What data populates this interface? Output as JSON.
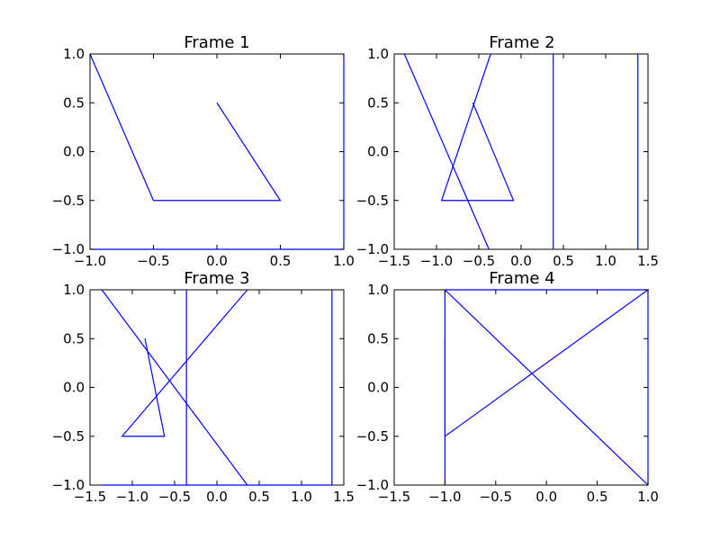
{
  "chart_data": [
    {
      "type": "line",
      "title": "Frame 1",
      "xlim": [
        -1.0,
        1.0
      ],
      "ylim": [
        -1.0,
        1.0
      ],
      "xticks": [
        "−1.0",
        "−0.5",
        "0.0",
        "0.5",
        "1.0"
      ],
      "yticks": [
        "−1.0",
        "−0.5",
        "0.0",
        "0.5",
        "1.0"
      ],
      "grid": false,
      "color": "#0000ff",
      "series": [
        {
          "x": [
            0.0,
            0.5,
            -0.5,
            -1.0
          ],
          "y": [
            0.5,
            -0.5,
            -0.5,
            1.0
          ]
        },
        {
          "x": [
            1.0,
            1.0
          ],
          "y": [
            1.0,
            -1.0
          ]
        },
        {
          "x": [
            1.0,
            -1.0
          ],
          "y": [
            -1.0,
            -1.0
          ]
        }
      ]
    },
    {
      "type": "line",
      "title": "Frame 2",
      "xlim": [
        -1.5,
        1.5
      ],
      "ylim": [
        -1.0,
        1.0
      ],
      "xticks": [
        "−1.5",
        "−1.0",
        "−0.5",
        "0.0",
        "0.5",
        "1.0",
        "1.5"
      ],
      "yticks": [
        "−1.0",
        "−0.5",
        "0.0",
        "0.5",
        "1.0"
      ],
      "grid": false,
      "color": "#0000ff",
      "series": [
        {
          "x": [
            -0.57,
            -0.09,
            -0.94,
            -0.36
          ],
          "y": [
            0.5,
            -0.5,
            -0.5,
            1.0
          ]
        },
        {
          "x": [
            -1.38,
            -0.38
          ],
          "y": [
            1.0,
            -1.0
          ]
        },
        {
          "x": [
            0.38,
            0.38
          ],
          "y": [
            1.0,
            -1.0
          ]
        },
        {
          "x": [
            1.38,
            1.38
          ],
          "y": [
            1.0,
            -1.0
          ]
        }
      ]
    },
    {
      "type": "line",
      "title": "Frame 3",
      "xlim": [
        -1.5,
        1.5
      ],
      "ylim": [
        -1.0,
        1.0
      ],
      "xticks": [
        "−1.5",
        "−1.0",
        "−0.5",
        "0.0",
        "0.5",
        "1.0",
        "1.5"
      ],
      "yticks": [
        "−1.0",
        "−0.5",
        "0.0",
        "0.5",
        "1.0"
      ],
      "grid": false,
      "color": "#0000ff",
      "series": [
        {
          "x": [
            -0.85,
            -0.62,
            -1.12,
            0.36
          ],
          "y": [
            0.5,
            -0.5,
            -0.5,
            1.0
          ]
        },
        {
          "x": [
            -1.36,
            0.36
          ],
          "y": [
            1.0,
            -1.0
          ]
        },
        {
          "x": [
            -0.36,
            -0.36
          ],
          "y": [
            1.0,
            -1.0
          ]
        },
        {
          "x": [
            1.36,
            1.36
          ],
          "y": [
            1.0,
            -1.0
          ]
        },
        {
          "x": [
            1.36,
            -1.36
          ],
          "y": [
            -1.0,
            -1.0
          ]
        }
      ]
    },
    {
      "type": "line",
      "title": "Frame 4",
      "xlim": [
        -1.5,
        1.0
      ],
      "ylim": [
        -1.0,
        1.0
      ],
      "xticks": [
        "−1.5",
        "−1.0",
        "−0.5",
        "0.0",
        "0.5",
        "1.0"
      ],
      "yticks": [
        "−1.0",
        "−0.5",
        "0.0",
        "0.5",
        "1.0"
      ],
      "grid": false,
      "color": "#0000ff",
      "series": [
        {
          "x": [
            -1.0,
            -1.0,
            1.0,
            -1.0
          ],
          "y": [
            0.5,
            -0.5,
            1.0,
            1.0
          ]
        },
        {
          "x": [
            -1.0,
            1.0
          ],
          "y": [
            1.0,
            -1.0
          ]
        },
        {
          "x": [
            -1.0,
            -1.0
          ],
          "y": [
            1.0,
            -1.0
          ]
        },
        {
          "x": [
            1.0,
            1.0
          ],
          "y": [
            1.0,
            -1.0
          ]
        }
      ]
    }
  ]
}
